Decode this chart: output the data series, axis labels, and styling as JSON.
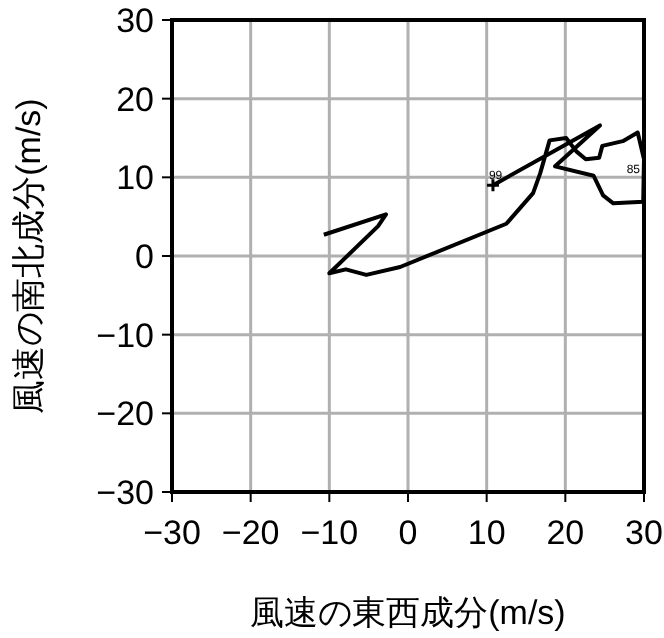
{
  "chart_data": {
    "type": "line",
    "xlabel": "風速の東西成分(m/s)",
    "ylabel": "風速の南北成分(m/s)",
    "xlim": [
      -30,
      30
    ],
    "ylim": [
      -30,
      30
    ],
    "xticks": [
      -30,
      -20,
      -10,
      0,
      10,
      20,
      30
    ],
    "yticks": [
      -30,
      -20,
      -10,
      0,
      10,
      20,
      30
    ],
    "grid": true,
    "series": [
      {
        "color": "#000000",
        "x": [
          10.8,
          24.4,
          18.7,
          23.6,
          24.8,
          26.1,
          29.9,
          30.0,
          29.2,
          27.3,
          24.7,
          24.3,
          22.6,
          21.4,
          20.1,
          18.0,
          16.8,
          15.9,
          12.5,
          -1.0,
          -5.3,
          -7.9,
          -10.0,
          -3.8,
          -2.8,
          -10.7
        ],
        "values": [
          9.0,
          16.6,
          11.4,
          10.2,
          7.7,
          6.7,
          6.9,
          12.3,
          15.7,
          14.6,
          14.0,
          12.5,
          12.3,
          13.3,
          15.0,
          14.7,
          10.5,
          8.0,
          4.1,
          -1.4,
          -2.4,
          -1.7,
          -2.2,
          3.8,
          5.3,
          2.7
        ]
      },
      {
        "type": "scatter",
        "color": "#000000",
        "marker": "cross",
        "x": [
          10.8
        ],
        "values": [
          9.0
        ]
      }
    ],
    "annotations": [
      {
        "text": "99",
        "x": 10.8,
        "y": 9.0
      },
      {
        "text": "85",
        "x": 30.0,
        "y": 9.8
      }
    ]
  }
}
